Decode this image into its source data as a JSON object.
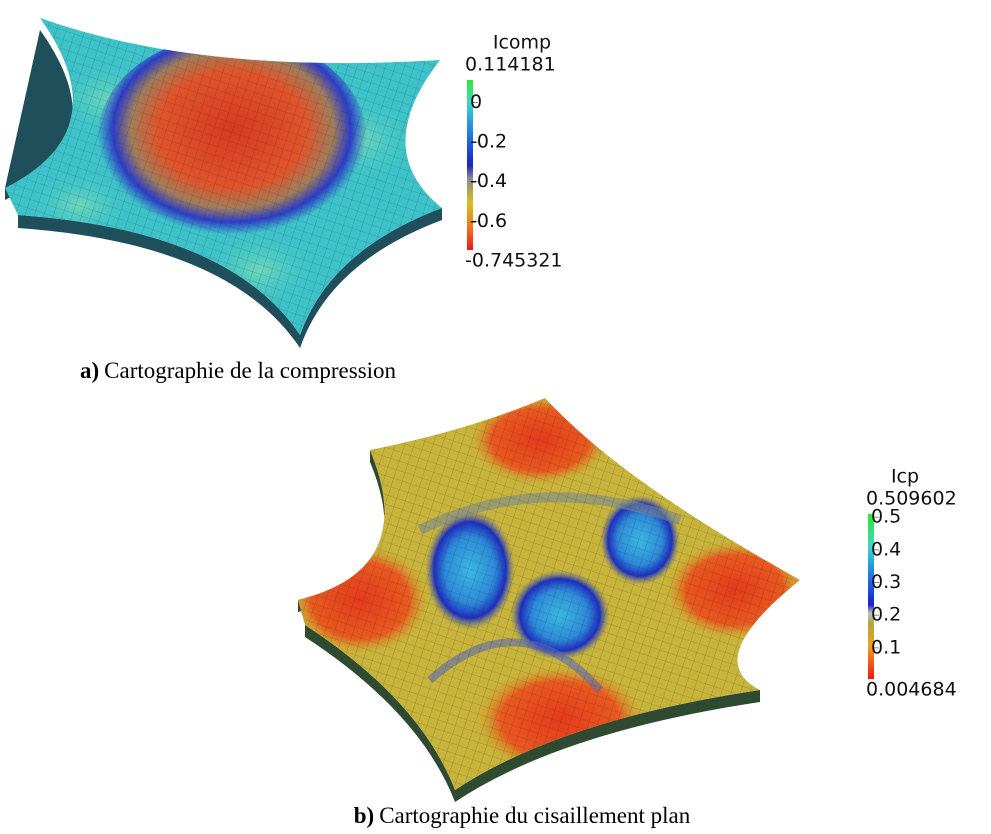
{
  "figures": [
    {
      "caption_label": "a)",
      "caption": "Cartographie de la compression",
      "colorbar": {
        "title": "Icomp",
        "max": 0.114181,
        "min": -0.745321,
        "ticks": [
          0,
          -0.2,
          -0.4,
          -0.6
        ]
      }
    },
    {
      "caption_label": "b)",
      "caption": "Cartographie du cisaillement plan",
      "colorbar": {
        "title": "Icp",
        "max": 0.509602,
        "min": 0.004684,
        "ticks": [
          0.5,
          0.4,
          0.3,
          0.2,
          0.1
        ]
      }
    }
  ]
}
